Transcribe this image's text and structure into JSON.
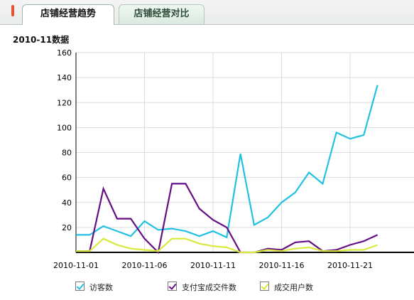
{
  "tabs": [
    {
      "label": "店铺经营趋势",
      "active": true
    },
    {
      "label": "店铺经营对比",
      "active": false
    }
  ],
  "subtitle": "2010-11数据",
  "watermark": "",
  "colors": {
    "visitors": "#22c1e2",
    "buyers": "#660f85",
    "orders": "#d8ea3c",
    "axis": "#000000",
    "grid": "#dddddd"
  },
  "chart_data": {
    "type": "line",
    "title": "",
    "xlabel": "",
    "ylabel": "",
    "ylim": [
      0,
      160
    ],
    "yticks": [
      20,
      40,
      60,
      80,
      100,
      120,
      140,
      160
    ],
    "x": [
      "2010-11-01",
      "2010-11-02",
      "2010-11-03",
      "2010-11-04",
      "2010-11-05",
      "2010-11-06",
      "2010-11-07",
      "2010-11-08",
      "2010-11-09",
      "2010-11-10",
      "2010-11-11",
      "2010-11-12",
      "2010-11-13",
      "2010-11-14",
      "2010-11-15",
      "2010-11-16",
      "2010-11-17",
      "2010-11-18",
      "2010-11-19",
      "2010-11-20",
      "2010-11-21",
      "2010-11-22",
      "2010-11-23"
    ],
    "xtick_labels": [
      {
        "index": 0,
        "label": "2010-11-01"
      },
      {
        "index": 5,
        "label": "2010-11-06"
      },
      {
        "index": 10,
        "label": "2010-11-11"
      },
      {
        "index": 15,
        "label": "2010-11-16"
      },
      {
        "index": 20,
        "label": "2010-11-21"
      }
    ],
    "grid": true,
    "legend_position": "bottom",
    "series": [
      {
        "name": "访客数",
        "color_key": "visitors",
        "values": [
          14,
          14,
          21,
          17,
          13,
          25,
          18,
          19,
          17,
          13,
          17,
          12,
          79,
          22,
          28,
          40,
          48,
          64,
          55,
          96,
          91,
          94,
          134
        ]
      },
      {
        "name": "支付宝成交件数",
        "color_key": "buyers",
        "values": [
          1,
          1,
          51,
          27,
          27,
          11,
          0,
          55,
          55,
          35,
          26,
          20,
          0,
          0,
          3,
          2,
          8,
          9,
          1,
          2,
          6,
          9,
          14
        ]
      },
      {
        "name": "成交用户数",
        "color_key": "orders",
        "values": [
          1,
          1,
          11,
          6,
          3,
          2,
          1,
          11,
          11,
          7,
          5,
          4,
          0,
          0,
          2,
          1,
          3,
          4,
          1,
          1,
          2,
          2,
          6
        ]
      }
    ]
  }
}
